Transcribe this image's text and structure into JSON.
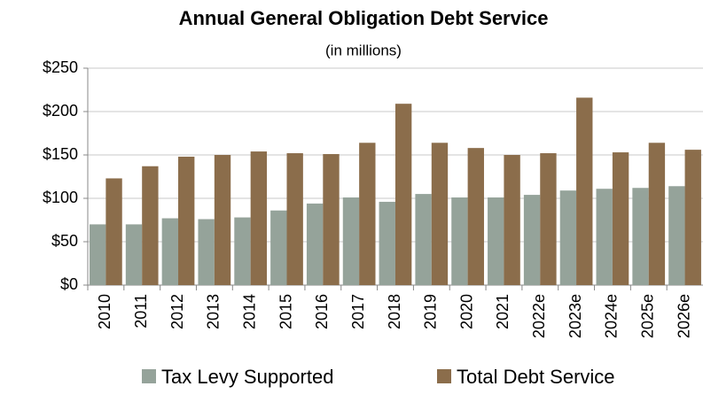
{
  "chart_data": {
    "type": "bar",
    "title": "Annual General Obligation Debt Service",
    "subtitle": "(in millions)",
    "categories": [
      "2010",
      "2011",
      "2012",
      "2013",
      "2014",
      "2015",
      "2016",
      "2017",
      "2018",
      "2019",
      "2020",
      "2021",
      "2022e",
      "2023e",
      "2024e",
      "2025e",
      "2026e"
    ],
    "series": [
      {
        "name": "Tax Levy Supported",
        "color": "#95a39a",
        "values": [
          70,
          70,
          77,
          76,
          78,
          86,
          94,
          101,
          96,
          105,
          101,
          101,
          104,
          109,
          111,
          112,
          114
        ]
      },
      {
        "name": "Total Debt Service",
        "color": "#8b6d4b",
        "values": [
          123,
          137,
          148,
          150,
          154,
          152,
          151,
          164,
          209,
          164,
          158,
          150,
          152,
          216,
          153,
          164,
          156
        ]
      }
    ],
    "ylim": [
      0,
      250
    ],
    "yticks": [
      {
        "value": 0,
        "label": "$0"
      },
      {
        "value": 50,
        "label": "$50"
      },
      {
        "value": 100,
        "label": "$100"
      },
      {
        "value": 150,
        "label": "$150"
      },
      {
        "value": 200,
        "label": "$200"
      },
      {
        "value": 250,
        "label": "$250"
      }
    ],
    "grid": true,
    "legend": "bottom"
  }
}
